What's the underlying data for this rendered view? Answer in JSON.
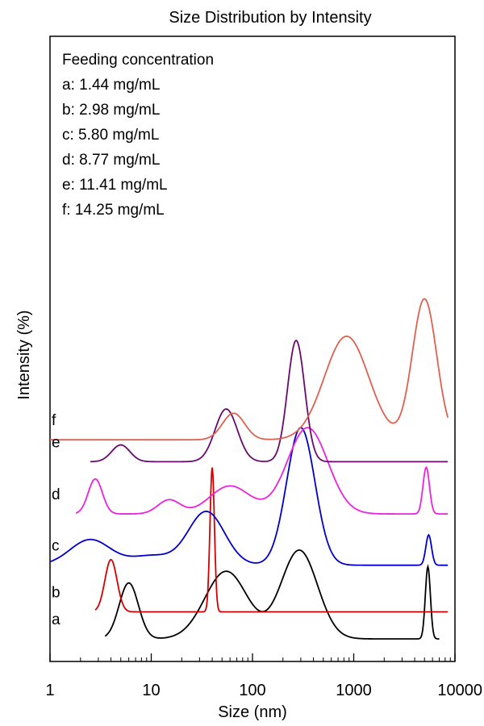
{
  "chart_data": {
    "type": "line",
    "title": "Size Distribution by Intensity",
    "xlabel": "Size (nm)",
    "ylabel": "Intensity (%)",
    "x_scale": "log",
    "xlim": [
      1,
      10000
    ],
    "x_ticks": [
      {
        "value": 1,
        "label": "1"
      },
      {
        "value": 10,
        "label": "10"
      },
      {
        "value": 100,
        "label": "100"
      },
      {
        "value": 1000,
        "label": "1000"
      },
      {
        "value": 10000,
        "label": "10000"
      }
    ],
    "grid": false,
    "legend": {
      "placement": "top-left",
      "heading": "Feeding concentration",
      "entries": [
        "a: 1.44 mg/mL",
        "b: 2.98 mg/mL",
        "c: 5.80 mg/mL",
        "d: 8.77 mg/mL",
        "e: 11.41 mg/mL",
        "f: 14.25 mg/mL"
      ]
    },
    "series": [
      {
        "label": "a",
        "color": "#000000",
        "baseline": 0,
        "xrange": [
          3.5,
          7000
        ],
        "peaks": [
          {
            "center": 6,
            "width": 0.095,
            "height": 1.2
          },
          {
            "center": 55,
            "width": 0.21,
            "height": 1.45
          },
          {
            "center": 290,
            "width": 0.18,
            "height": 1.9
          },
          {
            "center": 5400,
            "width": 0.025,
            "height": 1.55
          }
        ]
      },
      {
        "label": "b",
        "color": "#d40000",
        "baseline": 0.58,
        "xrange": [
          2.8,
          8500
        ],
        "peaks": [
          {
            "center": 4,
            "width": 0.06,
            "height": 1.12
          },
          {
            "center": 40,
            "width": 0.022,
            "height": 3.1
          }
        ]
      },
      {
        "label": "c",
        "color": "#0000cc",
        "baseline": 1.58,
        "xrange": [
          1,
          8500
        ],
        "peaks": [
          {
            "center": 2.5,
            "width": 0.2,
            "height": 0.55
          },
          {
            "center": 10,
            "width": 0.2,
            "height": 0.2
          },
          {
            "center": 35,
            "width": 0.18,
            "height": 1.15
          },
          {
            "center": 300,
            "width": 0.14,
            "height": 2.95
          },
          {
            "center": 5500,
            "width": 0.028,
            "height": 0.65
          }
        ]
      },
      {
        "label": "d",
        "color": "#ee22dd",
        "baseline": 2.68,
        "xrange": [
          1.8,
          8500
        ],
        "peaks": [
          {
            "center": 2.8,
            "width": 0.07,
            "height": 0.75
          },
          {
            "center": 15,
            "width": 0.11,
            "height": 0.3
          },
          {
            "center": 60,
            "width": 0.2,
            "height": 0.6
          },
          {
            "center": 350,
            "width": 0.2,
            "height": 1.85
          },
          {
            "center": 5200,
            "width": 0.032,
            "height": 1.0
          }
        ]
      },
      {
        "label": "e",
        "color": "#6a0a6e",
        "baseline": 3.8,
        "xrange": [
          2.5,
          8500
        ],
        "peaks": [
          {
            "center": 5,
            "width": 0.09,
            "height": 0.36
          },
          {
            "center": 55,
            "width": 0.11,
            "height": 1.13
          },
          {
            "center": 270,
            "width": 0.085,
            "height": 2.6
          }
        ]
      },
      {
        "label": "f",
        "color": "#e06050",
        "baseline": 4.27,
        "xrange": [
          1,
          8500
        ],
        "peaks": [
          {
            "center": 65,
            "width": 0.11,
            "height": 0.57
          },
          {
            "center": 850,
            "width": 0.22,
            "height": 2.22
          },
          {
            "center": 5000,
            "width": 0.12,
            "height": 3.02
          }
        ]
      }
    ]
  }
}
